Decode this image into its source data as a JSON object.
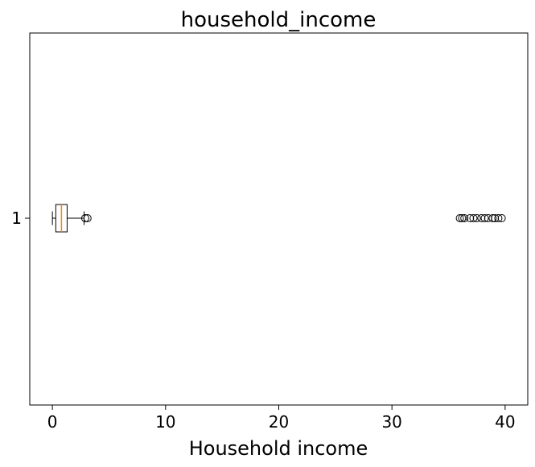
{
  "chart_data": {
    "type": "boxplot",
    "orientation": "horizontal",
    "title": "household_income",
    "xlabel": "Household income",
    "ylabel": "",
    "xlim": [
      -2,
      42
    ],
    "xticks": [
      0,
      10,
      20,
      30,
      40
    ],
    "yticks": [
      "1"
    ],
    "grid": false,
    "series": [
      {
        "label": "1",
        "whisker_low": 0.0,
        "q1": 0.3,
        "median": 0.8,
        "q3": 1.3,
        "whisker_high": 2.8,
        "outliers": [
          2.9,
          3.1,
          36.0,
          36.2,
          36.4,
          36.9,
          37.2,
          37.5,
          37.9,
          38.2,
          38.5,
          38.9,
          39.1,
          39.4,
          39.7
        ]
      }
    ],
    "colors": {
      "box": "#000000",
      "median": "#ff7f0e",
      "outlier": "#000000"
    }
  }
}
